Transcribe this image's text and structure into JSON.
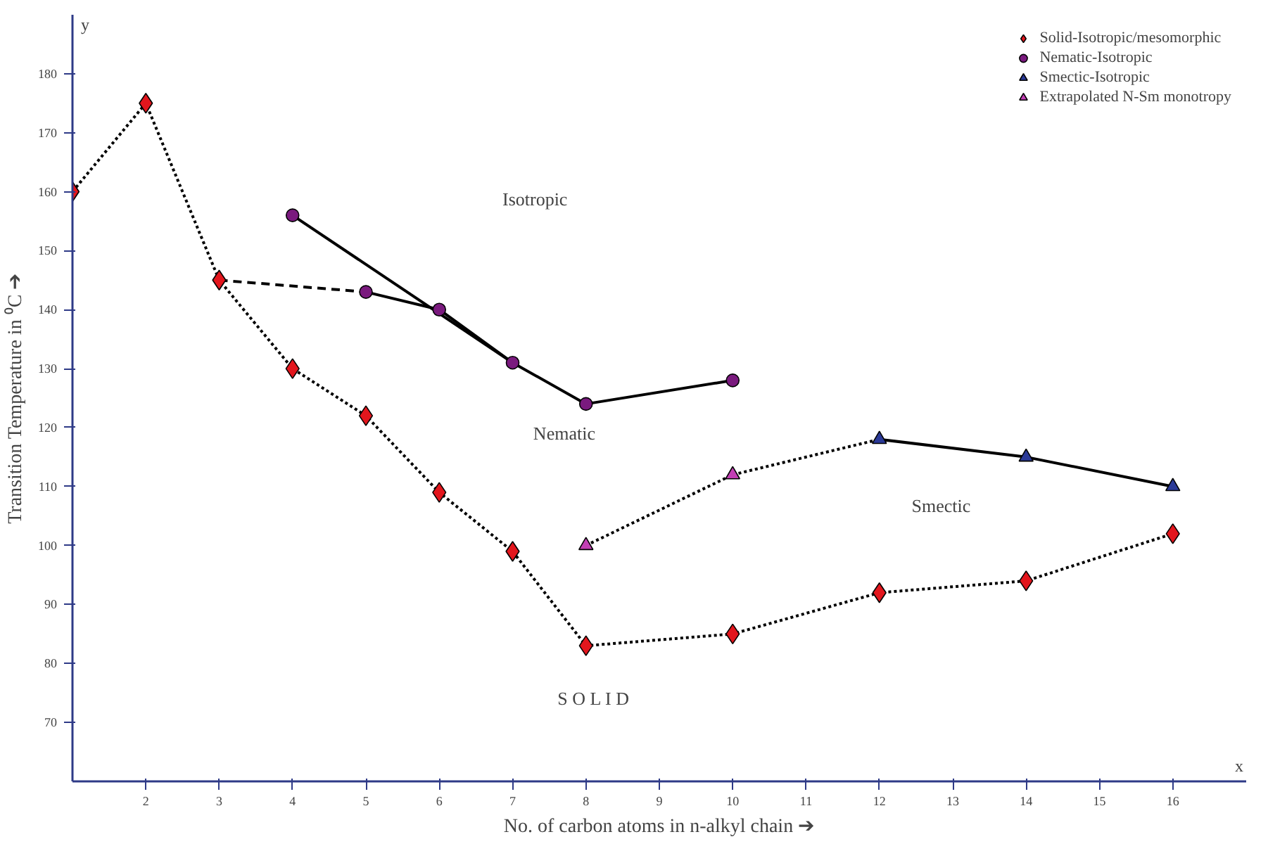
{
  "chart_data": {
    "type": "scatter",
    "xlabel": "No. of carbon atoms in n-alkyl chain ➔",
    "ylabel": "Transition Temperature in ⁰C ➔",
    "xlim": [
      1,
      17
    ],
    "ylim": [
      60,
      190
    ],
    "xticks": [
      2,
      3,
      4,
      5,
      6,
      7,
      8,
      9,
      10,
      11,
      12,
      13,
      14,
      15,
      16
    ],
    "yticks": [
      70,
      80,
      90,
      100,
      110,
      120,
      130,
      140,
      150,
      160,
      170,
      180
    ],
    "grid": false,
    "legend": "top right",
    "series": [
      {
        "type": "line",
        "color": "#000000",
        "line_style": "dotted",
        "marker": "none",
        "x": [
          1,
          2,
          3,
          4,
          5,
          6,
          7,
          8,
          10,
          12,
          14,
          16
        ],
        "values": [
          160,
          175,
          145,
          130,
          122,
          109,
          99,
          83,
          85,
          92,
          94,
          102
        ]
      },
      {
        "type": "line",
        "color": "#000000",
        "line_style": "dashed",
        "marker": "none",
        "x": [
          3,
          5
        ],
        "values": [
          145,
          143
        ]
      },
      {
        "type": "line",
        "color": "#000000",
        "line_style": "solid",
        "marker": "none",
        "x": [
          4,
          7
        ],
        "values": [
          156,
          131
        ]
      },
      {
        "type": "line",
        "color": "#000000",
        "line_style": "solid",
        "marker": "none",
        "x": [
          5,
          6,
          7,
          8,
          10
        ],
        "values": [
          143,
          140,
          131,
          124,
          128
        ]
      },
      {
        "type": "line",
        "color": "#000000",
        "line_style": "dotted",
        "marker": "none",
        "x": [
          8,
          10,
          12
        ],
        "values": [
          100,
          112,
          118
        ]
      },
      {
        "type": "line",
        "color": "#000000",
        "line_style": "solid",
        "marker": "none",
        "x": [
          12,
          14,
          16
        ],
        "values": [
          118,
          115,
          110
        ]
      },
      {
        "name": "Solid-Isotropic/mesomorphic",
        "color": "#e3161d",
        "marker": "diamond",
        "x": [
          1,
          2,
          3,
          4,
          5,
          6,
          7,
          8,
          10,
          12,
          14,
          16
        ],
        "values": [
          160,
          175,
          145,
          130,
          122,
          109,
          99,
          83,
          85,
          92,
          94,
          102
        ]
      },
      {
        "name": "Nematic-Isotropic",
        "color": "#7a1a7e",
        "marker": "circle",
        "x": [
          4,
          5,
          6,
          7,
          8,
          10
        ],
        "values": [
          156,
          143,
          140,
          131,
          124,
          128
        ]
      },
      {
        "name": "Smectic-Isotropic",
        "color": "#2b3a98",
        "marker": "triangle",
        "x": [
          12,
          14,
          16
        ],
        "values": [
          118,
          115,
          110
        ]
      },
      {
        "name": "Extrapolated N-Sm monotropy",
        "color": "#c23fb4",
        "marker": "triangle",
        "x": [
          8,
          10
        ],
        "values": [
          100,
          112
        ]
      }
    ],
    "annotations": [
      "y",
      "x",
      "Isotropic",
      "Nematic",
      "Smectic",
      "S O L I D"
    ]
  }
}
